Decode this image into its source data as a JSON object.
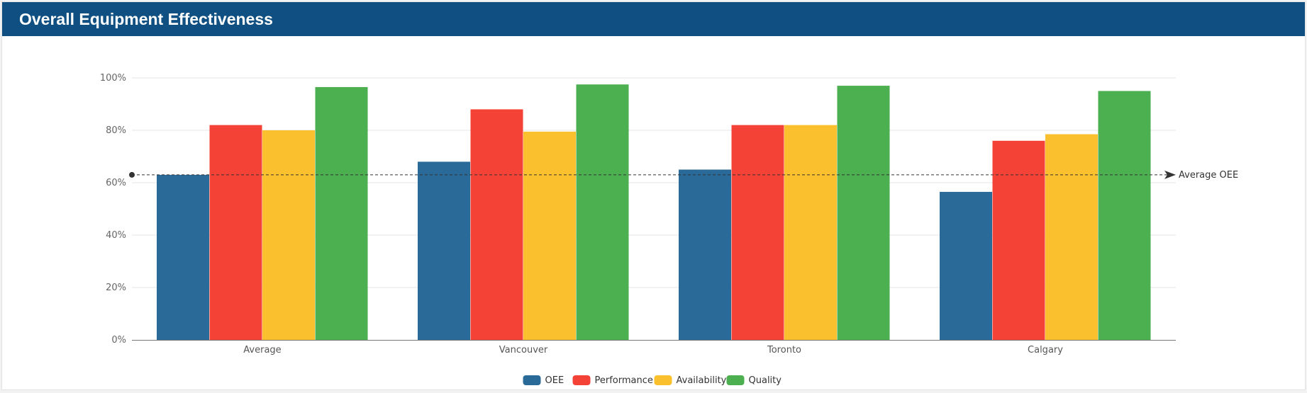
{
  "header": {
    "title": "Overall Equipment Effectiveness",
    "background": "#0f4f82"
  },
  "chart_data": {
    "type": "bar",
    "categories": [
      "Average",
      "Vancouver",
      "Toronto",
      "Calgary"
    ],
    "series": [
      {
        "name": "OEE",
        "color": "#2a6a98",
        "values": [
          63,
          68,
          65,
          56.5
        ]
      },
      {
        "name": "Performance",
        "color": "#f44336",
        "values": [
          82,
          88,
          82,
          76
        ]
      },
      {
        "name": "Availability",
        "color": "#fbc02d",
        "values": [
          80,
          79.5,
          82,
          78.5
        ]
      },
      {
        "name": "Quality",
        "color": "#4caf50",
        "values": [
          96.5,
          97.5,
          97,
          95
        ]
      }
    ],
    "ylim": [
      0,
      100
    ],
    "yticks": [
      0,
      20,
      40,
      60,
      80,
      100
    ],
    "ytick_labels": [
      "0%",
      "20%",
      "40%",
      "60%",
      "80%",
      "100%"
    ],
    "grid": true,
    "legend_position": "bottom-center",
    "reference_line": {
      "label": "Average OEE",
      "value": 63
    }
  }
}
